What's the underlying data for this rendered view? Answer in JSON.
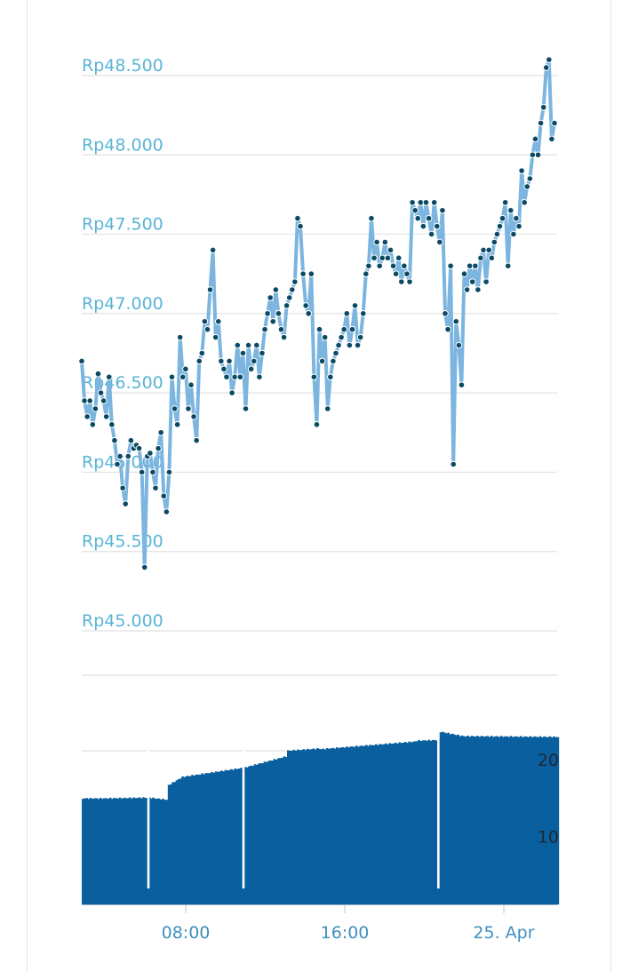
{
  "chart_data": [
    {
      "type": "line",
      "title": "",
      "xlabel": "",
      "ylabel": "",
      "ylim": [
        45000,
        48500
      ],
      "y_ticks": [
        45000,
        45500,
        46000,
        46500,
        47000,
        47500,
        48000,
        48500
      ],
      "y_tick_labels": [
        "Rp45.000",
        "Rp45.500",
        "Rp46.000",
        "Rp46.500",
        "Rp47.000",
        "Rp47.500",
        "Rp48.000",
        "Rp48.500"
      ],
      "x_tick_labels": [
        "08:00",
        "16:00",
        "25. Apr"
      ],
      "grid": true,
      "line_color": "#7cb5e0",
      "marker_color": "#0b4a64",
      "series": [
        {
          "values": [
            46700,
            46450,
            46350,
            46450,
            46300,
            46400,
            46620,
            46500,
            46450,
            46350,
            46600,
            46300,
            46200,
            46050,
            46100,
            45900,
            45800,
            46100,
            46200,
            46150,
            46170,
            46150,
            46000,
            45400,
            46100,
            46120,
            46000,
            45900,
            46150,
            46250,
            45850,
            45750,
            46000,
            46600,
            46400,
            46300,
            46850,
            46600,
            46650,
            46400,
            46550,
            46350,
            46200,
            46700,
            46750,
            46950,
            46900,
            47150,
            47400,
            46850,
            46950,
            46700,
            46650,
            46600,
            46700,
            46500,
            46600,
            46800,
            46600,
            46750,
            46400,
            46800,
            46650,
            46700,
            46800,
            46600,
            46750,
            46900,
            47000,
            47100,
            46950,
            47150,
            47000,
            46900,
            46850,
            47050,
            47100,
            47150,
            47200,
            47600,
            47550,
            47250,
            47050,
            47000,
            47250,
            46600,
            46300,
            46900,
            46700,
            46850,
            46400,
            46600,
            46700,
            46750,
            46800,
            46850,
            46900,
            47000,
            46800,
            46900,
            47050,
            46800,
            46850,
            47000,
            47250,
            47300,
            47600,
            47350,
            47450,
            47300,
            47350,
            47450,
            47350,
            47400,
            47300,
            47250,
            47350,
            47200,
            47300,
            47250,
            47200,
            47700,
            47650,
            47600,
            47700,
            47550,
            47700,
            47600,
            47500,
            47700,
            47550,
            47450,
            47650,
            47000,
            46900,
            47300,
            46050,
            46950,
            46800,
            46550,
            47250,
            47150,
            47300,
            47200,
            47300,
            47150,
            47350,
            47400,
            47200,
            47400,
            47350,
            47450,
            47500,
            47550,
            47600,
            47700,
            47300,
            47650,
            47500,
            47600,
            47550,
            47900,
            47700,
            47800,
            47850,
            48000,
            48100,
            48000,
            48200,
            48300,
            48550,
            48600,
            48100,
            48200
          ]
        }
      ]
    },
    {
      "type": "bar",
      "title": "",
      "xlabel": "",
      "ylabel": "",
      "ylim": [
        0,
        23
      ],
      "y_ticks": [
        10,
        20
      ],
      "y_tick_labels": [
        "10",
        "20"
      ],
      "color": "#0a5f9e",
      "segments": [
        {
          "from": 0.0,
          "to": 0.04,
          "start": 13.8,
          "end": 13.8
        },
        {
          "from": 0.04,
          "to": 0.14,
          "start": 13.8,
          "end": 13.9
        },
        {
          "from": 0.14,
          "to": 0.18,
          "start": 13.9,
          "end": 13.6
        },
        {
          "from": 0.18,
          "to": 0.21,
          "start": 15.5,
          "end": 16.6
        },
        {
          "from": 0.21,
          "to": 0.34,
          "start": 16.6,
          "end": 17.8
        },
        {
          "from": 0.34,
          "to": 0.43,
          "start": 17.8,
          "end": 19.3
        },
        {
          "from": 0.43,
          "to": 0.5,
          "start": 20.0,
          "end": 20.3
        },
        {
          "from": 0.5,
          "to": 0.58,
          "start": 20.2,
          "end": 20.6
        },
        {
          "from": 0.58,
          "to": 0.7,
          "start": 20.6,
          "end": 21.2
        },
        {
          "from": 0.7,
          "to": 0.75,
          "start": 21.3,
          "end": 21.4
        },
        {
          "from": 0.75,
          "to": 0.8,
          "start": 22.5,
          "end": 21.9
        },
        {
          "from": 0.8,
          "to": 1.0,
          "start": 21.9,
          "end": 21.8
        }
      ],
      "gaps": [
        0.14,
        0.34,
        0.75
      ]
    }
  ]
}
